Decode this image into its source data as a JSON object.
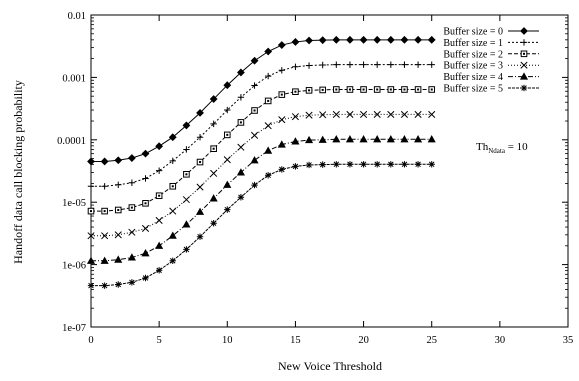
{
  "chart_data": {
    "type": "line",
    "xlabel": "New Voice Threshold",
    "ylabel": "Handoff data call blocking probability",
    "xlim": [
      0,
      35
    ],
    "ylim": [
      1e-07,
      0.01
    ],
    "yscale": "log",
    "x_ticks": [
      0,
      5,
      10,
      15,
      20,
      25,
      30,
      35
    ],
    "y_ticks": [
      1e-07,
      1e-06,
      1e-05,
      0.0001,
      0.001,
      0.01
    ],
    "y_tick_labels": [
      "1e-07",
      "1e-06",
      "1e-05",
      "0.0001",
      "0.001",
      "0.01"
    ],
    "grid": false,
    "legend_position": "top-right",
    "annotation": {
      "main": "Th",
      "sub": "Ndata",
      "tail": " = 10"
    },
    "x": [
      0,
      1,
      2,
      3,
      4,
      5,
      6,
      7,
      8,
      9,
      10,
      11,
      12,
      13,
      14,
      15,
      16,
      17,
      18,
      19,
      20,
      21,
      22,
      23,
      24,
      25
    ],
    "series": [
      {
        "name": "Buffer size = 0",
        "marker": "diamond",
        "values": [
          4.5e-05,
          4.5e-05,
          4.7e-05,
          5.1e-05,
          6e-05,
          7.9e-05,
          0.00011,
          0.00017,
          0.00027,
          0.00045,
          0.00075,
          0.0012,
          0.00185,
          0.0026,
          0.0033,
          0.0037,
          0.0039,
          0.00395,
          0.004,
          0.004,
          0.004,
          0.004,
          0.004,
          0.004,
          0.004,
          0.004
        ]
      },
      {
        "name": "Buffer size = 1",
        "marker": "plus",
        "values": [
          1.8e-05,
          1.8e-05,
          1.9e-05,
          2.05e-05,
          2.4e-05,
          3.2e-05,
          4.6e-05,
          7e-05,
          0.00011,
          0.00018,
          0.0003,
          0.00048,
          0.00074,
          0.00105,
          0.0013,
          0.00148,
          0.00155,
          0.00158,
          0.0016,
          0.0016,
          0.0016,
          0.0016,
          0.0016,
          0.0016,
          0.0016,
          0.0016
        ]
      },
      {
        "name": "Buffer size = 2",
        "marker": "square",
        "values": [
          7.2e-06,
          7.2e-06,
          7.5e-06,
          8.2e-06,
          9.6e-06,
          1.27e-05,
          1.8e-05,
          2.8e-05,
          4.4e-05,
          7.2e-05,
          0.00012,
          0.00019,
          0.000295,
          0.00042,
          0.00053,
          0.00059,
          0.00062,
          0.00063,
          0.00064,
          0.00064,
          0.00064,
          0.00064,
          0.00064,
          0.00064,
          0.00064,
          0.00064
        ]
      },
      {
        "name": "Buffer size = 3",
        "marker": "x",
        "values": [
          2.9e-06,
          2.9e-06,
          3e-06,
          3.3e-06,
          3.8e-06,
          5.1e-06,
          7.2e-06,
          1.1e-05,
          1.75e-05,
          2.9e-05,
          4.8e-05,
          7.6e-05,
          0.000118,
          0.000168,
          0.00021,
          0.000235,
          0.000248,
          0.000252,
          0.000255,
          0.000255,
          0.000255,
          0.000255,
          0.000255,
          0.000255,
          0.000255,
          0.000255
        ]
      },
      {
        "name": "Buffer size = 4",
        "marker": "triangle",
        "values": [
          1.15e-06,
          1.15e-06,
          1.2e-06,
          1.3e-06,
          1.52e-06,
          2e-06,
          2.9e-06,
          4.4e-06,
          7e-06,
          1.15e-05,
          1.9e-05,
          3e-05,
          4.7e-05,
          6.7e-05,
          8.4e-05,
          9.4e-05,
          9.9e-05,
          0.0001,
          0.000102,
          0.000102,
          0.000102,
          0.000102,
          0.000102,
          0.000102,
          0.000102,
          0.000102
        ]
      },
      {
        "name": "Buffer size = 5",
        "marker": "star",
        "values": [
          4.6e-07,
          4.6e-07,
          4.8e-07,
          5.2e-07,
          6.1e-07,
          8.1e-07,
          1.15e-06,
          1.75e-06,
          2.8e-06,
          4.6e-06,
          7.6e-06,
          1.2e-05,
          1.88e-05,
          2.7e-05,
          3.35e-05,
          3.75e-05,
          3.95e-05,
          4e-05,
          4.05e-05,
          4.05e-05,
          4.05e-05,
          4.05e-05,
          4.05e-05,
          4.05e-05,
          4.05e-05,
          4.05e-05
        ]
      }
    ]
  }
}
